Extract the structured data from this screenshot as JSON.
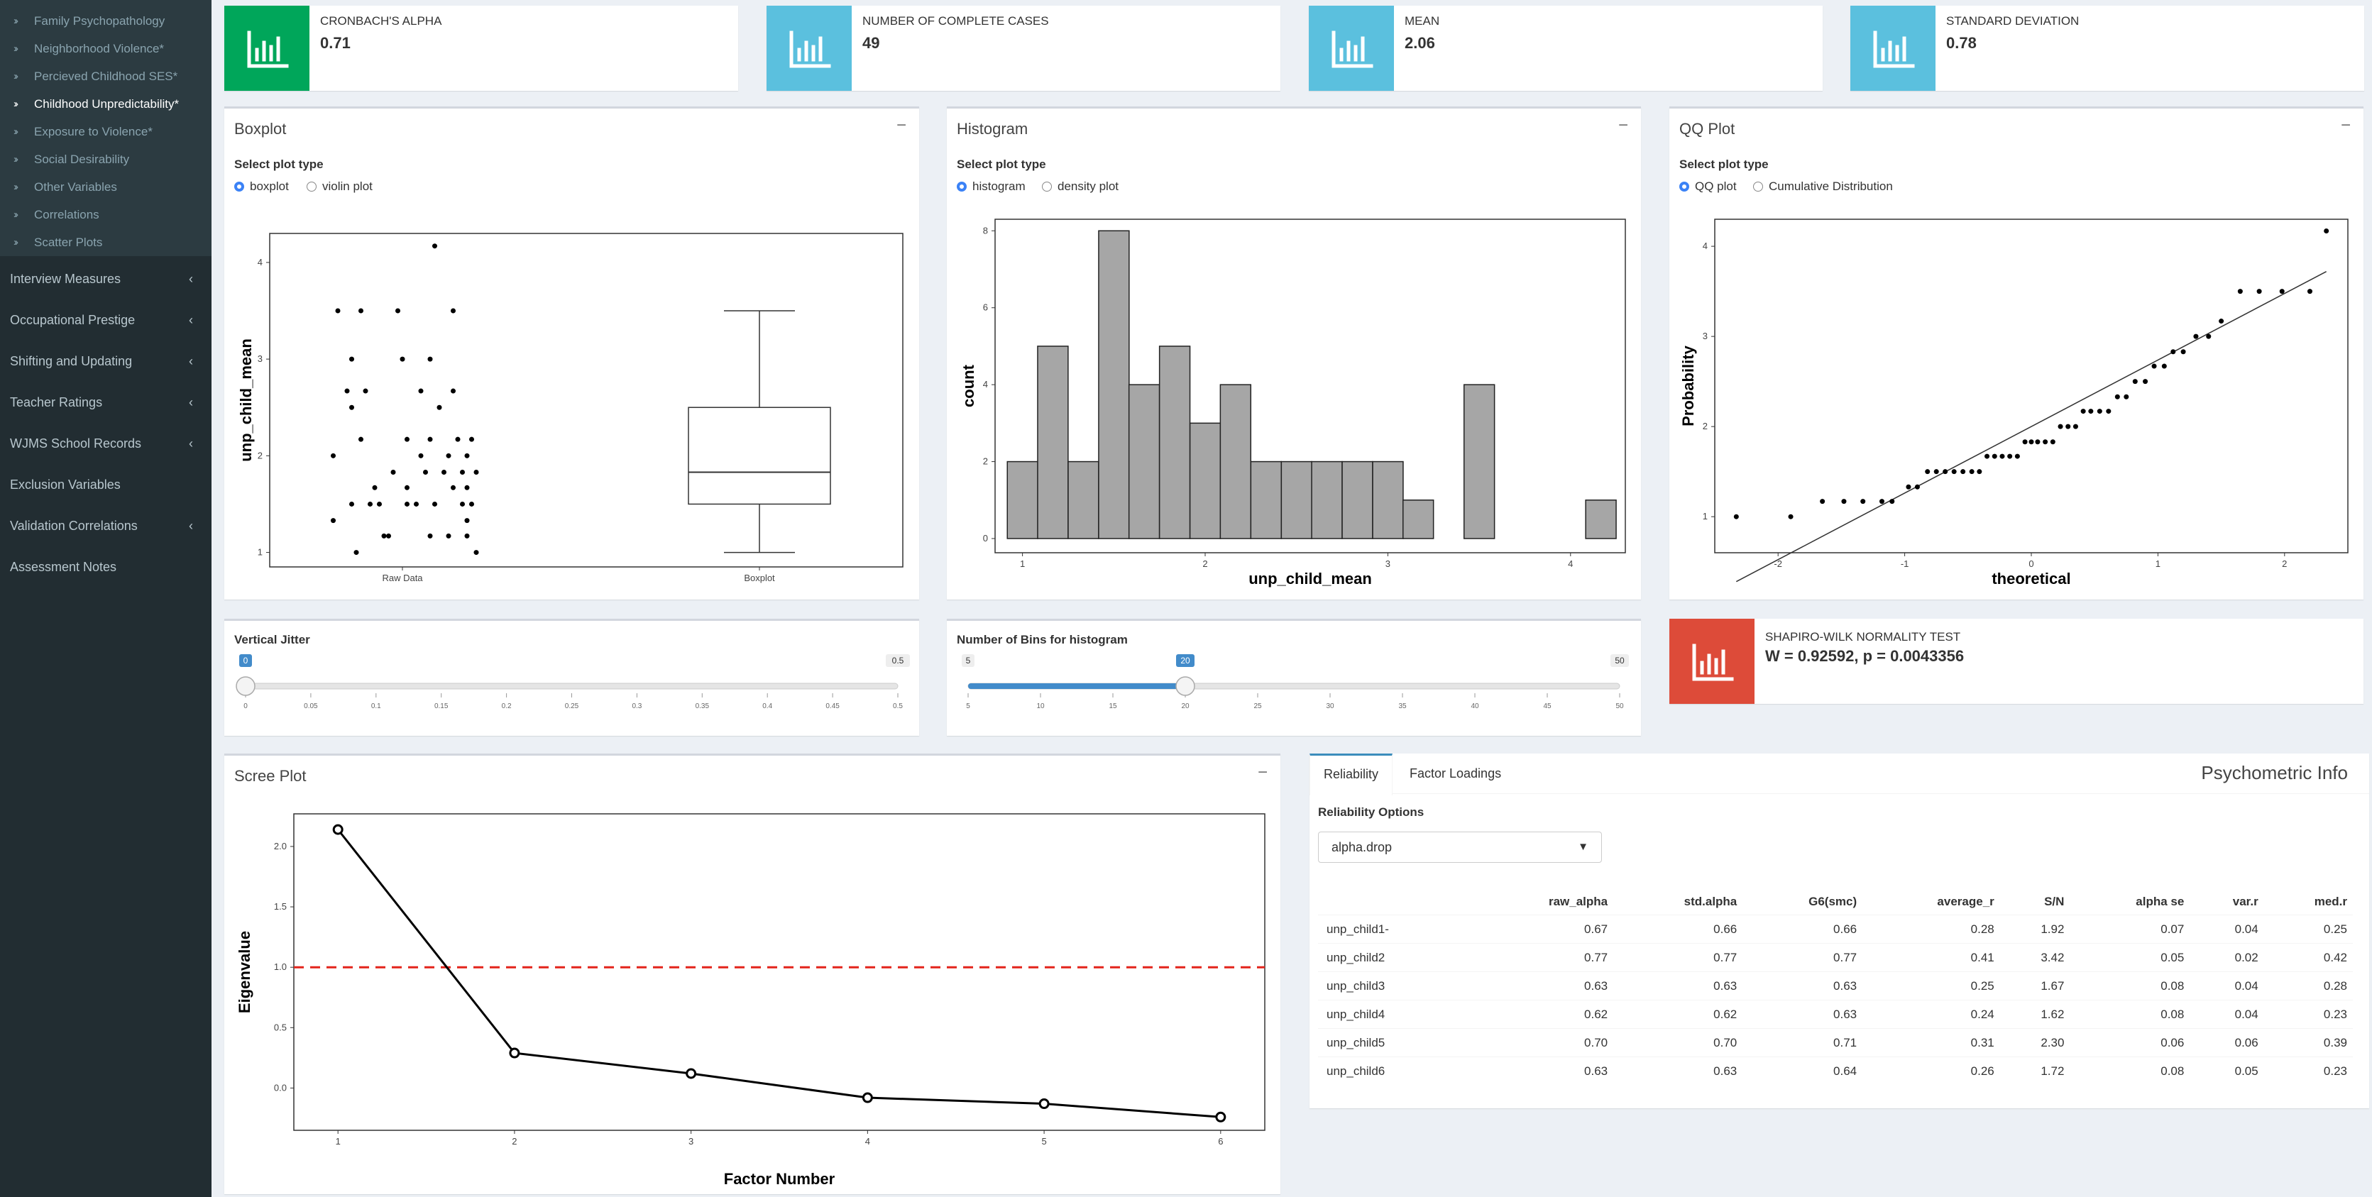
{
  "sidebar": {
    "sub_items": [
      {
        "label": "Family Psychopathology",
        "active": false
      },
      {
        "label": "Neighborhood Violence*",
        "active": false
      },
      {
        "label": "Percieved Childhood SES*",
        "active": false
      },
      {
        "label": "Childhood Unpredictability*",
        "active": true
      },
      {
        "label": "Exposure to Violence*",
        "active": false
      },
      {
        "label": "Social Desirability",
        "active": false
      },
      {
        "label": "Other Variables",
        "active": false
      },
      {
        "label": "Correlations",
        "active": false
      },
      {
        "label": "Scatter Plots",
        "active": false
      }
    ],
    "menu_items": [
      {
        "label": "Interview Measures",
        "has_caret": true
      },
      {
        "label": "Occupational Prestige",
        "has_caret": true
      },
      {
        "label": "Shifting and Updating",
        "has_caret": true
      },
      {
        "label": "Teacher Ratings",
        "has_caret": true
      },
      {
        "label": "WJMS School Records",
        "has_caret": true
      },
      {
        "label": "Exclusion Variables",
        "has_caret": false
      },
      {
        "label": "Validation Correlations",
        "has_caret": true
      },
      {
        "label": "Assessment Notes",
        "has_caret": false
      }
    ]
  },
  "info_boxes": [
    {
      "title": "CRONBACH'S ALPHA",
      "value": "0.71",
      "color": "#00a65a",
      "icon": "bar-chart-icon"
    },
    {
      "title": "NUMBER OF COMPLETE CASES",
      "value": "49",
      "color": "#5bc0de",
      "icon": "bar-chart-icon"
    },
    {
      "title": "MEAN",
      "value": "2.06",
      "color": "#5bc0de",
      "icon": "bar-chart-icon"
    },
    {
      "title": "STANDARD DEVIATION",
      "value": "0.78",
      "color": "#5bc0de",
      "icon": "bar-chart-icon"
    }
  ],
  "boxplot": {
    "title": "Boxplot",
    "select_label": "Select plot type",
    "options": [
      "boxplot",
      "violin plot"
    ],
    "selected": "boxplot"
  },
  "histogram": {
    "title": "Histogram",
    "select_label": "Select plot type",
    "options": [
      "histogram",
      "density plot"
    ],
    "selected": "histogram"
  },
  "qqplot": {
    "title": "QQ Plot",
    "select_label": "Select plot type",
    "options": [
      "QQ plot",
      "Cumulative Distribution"
    ],
    "selected": "QQ plot"
  },
  "jitter_slider": {
    "label": "Vertical Jitter",
    "min": 0,
    "max": 0.5,
    "value": 0,
    "min_label": "0",
    "max_label": "0.5",
    "value_label": "0",
    "ticks": [
      "0",
      "0.05",
      "0.1",
      "0.15",
      "0.2",
      "0.25",
      "0.3",
      "0.35",
      "0.4",
      "0.45",
      "0.5"
    ]
  },
  "bins_slider": {
    "label": "Number of Bins for histogram",
    "min": 5,
    "max": 50,
    "value": 20,
    "min_label": "5",
    "max_label": "50",
    "value_label": "20",
    "ticks": [
      "5",
      "10",
      "15",
      "20",
      "25",
      "30",
      "35",
      "40",
      "45",
      "50"
    ]
  },
  "shapiro": {
    "title": "SHAPIRO-WILK NORMALITY TEST",
    "value": "W = 0.92592, p = 0.0043356",
    "color": "#dd4b39",
    "icon": "bar-chart-icon"
  },
  "scree": {
    "title": "Scree Plot"
  },
  "psychometric": {
    "title": "Psychometric Info",
    "tabs": [
      "Reliability",
      "Factor Loadings"
    ],
    "active_tab": "Reliability",
    "options_label": "Reliability Options",
    "select_value": "alpha.drop",
    "columns": [
      "",
      "raw_alpha",
      "std.alpha",
      "G6(smc)",
      "average_r",
      "S/N",
      "alpha se",
      "var.r",
      "med.r"
    ],
    "rows": [
      [
        "unp_child1-",
        "0.67",
        "0.66",
        "0.66",
        "0.28",
        "1.92",
        "0.07",
        "0.04",
        "0.25"
      ],
      [
        "unp_child2",
        "0.77",
        "0.77",
        "0.77",
        "0.41",
        "3.42",
        "0.05",
        "0.02",
        "0.42"
      ],
      [
        "unp_child3",
        "0.63",
        "0.63",
        "0.63",
        "0.25",
        "1.67",
        "0.08",
        "0.04",
        "0.28"
      ],
      [
        "unp_child4",
        "0.62",
        "0.62",
        "0.63",
        "0.24",
        "1.62",
        "0.08",
        "0.04",
        "0.23"
      ],
      [
        "unp_child5",
        "0.70",
        "0.70",
        "0.71",
        "0.31",
        "2.30",
        "0.06",
        "0.06",
        "0.39"
      ],
      [
        "unp_child6",
        "0.63",
        "0.63",
        "0.64",
        "0.26",
        "1.72",
        "0.08",
        "0.05",
        "0.23"
      ]
    ]
  },
  "chart_data": [
    {
      "type": "scatter",
      "name": "boxplot",
      "xlabel": "",
      "ylabel": "unp_child_mean",
      "categories": [
        "Raw Data",
        "Boxplot"
      ],
      "ylim": [
        0.85,
        4.3
      ],
      "yticks": [
        1,
        2,
        3,
        4
      ],
      "raw_points": [
        [
          -0.7,
          3.5
        ],
        [
          -0.45,
          3.5
        ],
        [
          -0.05,
          3.5
        ],
        [
          0.55,
          3.5
        ],
        [
          -0.55,
          3.0
        ],
        [
          0.0,
          3.0
        ],
        [
          0.3,
          3.0
        ],
        [
          -0.6,
          2.67
        ],
        [
          -0.4,
          2.67
        ],
        [
          0.2,
          2.67
        ],
        [
          0.55,
          2.67
        ],
        [
          -0.55,
          2.5
        ],
        [
          0.4,
          2.5
        ],
        [
          -0.45,
          2.17
        ],
        [
          0.05,
          2.17
        ],
        [
          0.3,
          2.17
        ],
        [
          0.6,
          2.17
        ],
        [
          0.75,
          2.17
        ],
        [
          -0.75,
          2.0
        ],
        [
          0.2,
          2.0
        ],
        [
          0.5,
          2.0
        ],
        [
          0.7,
          2.0
        ],
        [
          -0.1,
          1.83
        ],
        [
          0.25,
          1.83
        ],
        [
          0.45,
          1.83
        ],
        [
          0.65,
          1.83
        ],
        [
          0.8,
          1.83
        ],
        [
          -0.3,
          1.67
        ],
        [
          0.05,
          1.67
        ],
        [
          0.55,
          1.67
        ],
        [
          0.7,
          1.67
        ],
        [
          -0.55,
          1.5
        ],
        [
          -0.35,
          1.5
        ],
        [
          -0.25,
          1.5
        ],
        [
          0.05,
          1.5
        ],
        [
          0.15,
          1.5
        ],
        [
          0.35,
          1.5
        ],
        [
          0.65,
          1.5
        ],
        [
          0.75,
          1.5
        ],
        [
          -0.75,
          1.33
        ],
        [
          0.7,
          1.33
        ],
        [
          -0.2,
          1.17
        ],
        [
          -0.15,
          1.17
        ],
        [
          0.3,
          1.17
        ],
        [
          0.5,
          1.17
        ],
        [
          0.7,
          1.17
        ],
        [
          -0.5,
          1.0
        ],
        [
          0.8,
          1.0
        ],
        [
          0.35,
          4.17
        ]
      ],
      "box": {
        "min": 1.0,
        "q1": 1.5,
        "median": 1.83,
        "q3": 2.5,
        "max": 3.5
      }
    },
    {
      "type": "bar",
      "name": "histogram",
      "xlabel": "unp_child_mean",
      "ylabel": "count",
      "xlim": [
        0.85,
        4.3
      ],
      "ylim": [
        0,
        8.3
      ],
      "xticks": [
        1,
        2,
        3,
        4
      ],
      "yticks": [
        0,
        2,
        4,
        6,
        8
      ],
      "bin_width": 0.1667,
      "bin_starts": [
        0.917,
        1.083,
        1.25,
        1.417,
        1.583,
        1.75,
        1.917,
        2.083,
        2.25,
        2.417,
        2.583,
        2.75,
        2.917,
        3.083,
        3.25,
        3.417,
        3.583,
        3.75,
        3.917,
        4.083
      ],
      "counts": [
        2,
        5,
        2,
        8,
        4,
        5,
        3,
        4,
        2,
        2,
        2,
        2,
        2,
        1,
        0,
        4,
        0,
        0,
        0,
        1
      ]
    },
    {
      "type": "scatter",
      "name": "qqplot",
      "xlabel": "theoretical",
      "ylabel": "Probability",
      "xlim": [
        -2.5,
        2.5
      ],
      "ylim": [
        0.6,
        4.3
      ],
      "xticks": [
        -2,
        -1,
        0,
        1,
        2
      ],
      "yticks": [
        1,
        2,
        3,
        4
      ],
      "points": [
        [
          -2.33,
          1.0
        ],
        [
          -1.9,
          1.0
        ],
        [
          -1.65,
          1.17
        ],
        [
          -1.48,
          1.17
        ],
        [
          -1.33,
          1.17
        ],
        [
          -1.18,
          1.17
        ],
        [
          -1.1,
          1.17
        ],
        [
          -0.97,
          1.33
        ],
        [
          -0.9,
          1.33
        ],
        [
          -0.82,
          1.5
        ],
        [
          -0.75,
          1.5
        ],
        [
          -0.68,
          1.5
        ],
        [
          -0.61,
          1.5
        ],
        [
          -0.54,
          1.5
        ],
        [
          -0.47,
          1.5
        ],
        [
          -0.41,
          1.5
        ],
        [
          -0.35,
          1.67
        ],
        [
          -0.29,
          1.67
        ],
        [
          -0.23,
          1.67
        ],
        [
          -0.17,
          1.67
        ],
        [
          -0.11,
          1.67
        ],
        [
          -0.05,
          1.83
        ],
        [
          0.0,
          1.83
        ],
        [
          0.05,
          1.83
        ],
        [
          0.11,
          1.83
        ],
        [
          0.17,
          1.83
        ],
        [
          0.23,
          2.0
        ],
        [
          0.29,
          2.0
        ],
        [
          0.35,
          2.0
        ],
        [
          0.41,
          2.17
        ],
        [
          0.47,
          2.17
        ],
        [
          0.54,
          2.17
        ],
        [
          0.61,
          2.17
        ],
        [
          0.68,
          2.33
        ],
        [
          0.75,
          2.33
        ],
        [
          0.82,
          2.5
        ],
        [
          0.9,
          2.5
        ],
        [
          0.97,
          2.67
        ],
        [
          1.05,
          2.67
        ],
        [
          1.12,
          2.83
        ],
        [
          1.2,
          2.83
        ],
        [
          1.3,
          3.0
        ],
        [
          1.4,
          3.0
        ],
        [
          1.5,
          3.17
        ],
        [
          1.65,
          3.5
        ],
        [
          1.8,
          3.5
        ],
        [
          1.98,
          3.5
        ],
        [
          2.2,
          3.5
        ],
        [
          2.33,
          4.17
        ]
      ],
      "line": [
        [
          -2.33,
          0.28
        ],
        [
          2.33,
          3.72
        ]
      ]
    },
    {
      "type": "line",
      "name": "scree",
      "xlabel": "Factor Number",
      "ylabel": "Eigenvalue",
      "x": [
        1,
        2,
        3,
        4,
        5,
        6
      ],
      "values": [
        2.14,
        0.29,
        0.12,
        -0.08,
        -0.13,
        -0.24
      ],
      "xlim": [
        0.75,
        6.25
      ],
      "ylim": [
        -0.35,
        2.27
      ],
      "xticks": [
        1,
        2,
        3,
        4,
        5,
        6
      ],
      "yticks": [
        0.0,
        0.5,
        1.0,
        1.5,
        2.0
      ],
      "reference_line": 1.0,
      "reference_color": "#e3241b"
    }
  ]
}
